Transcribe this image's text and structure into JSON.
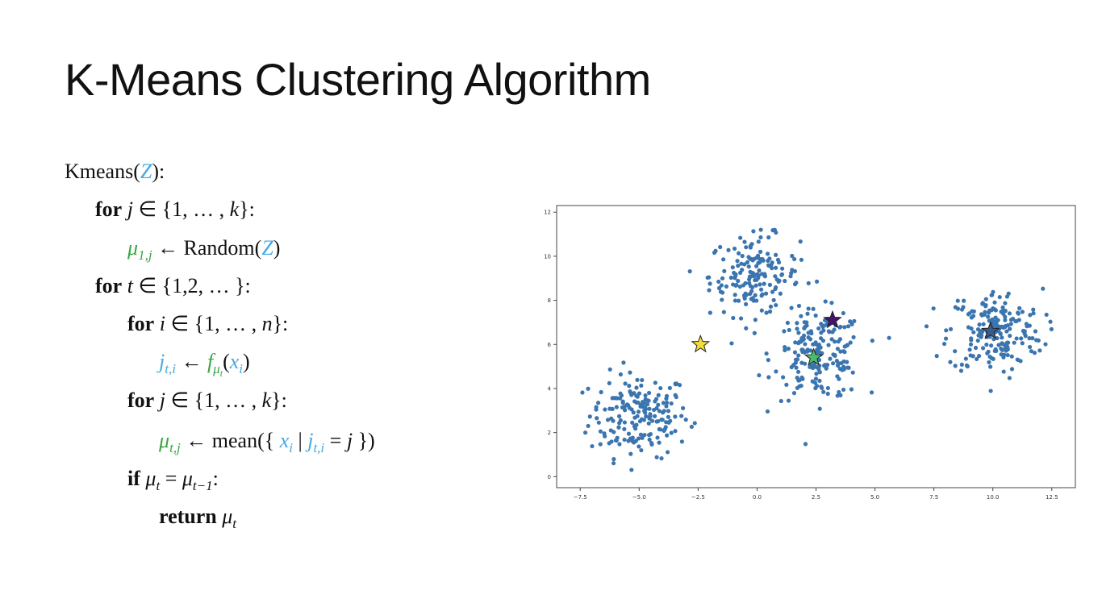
{
  "title": "K-Means Clustering Algorithm",
  "algorithm": {
    "l1": {
      "fn": "Kmeans(",
      "arg": "Z",
      "end": "):"
    },
    "l2": {
      "kw": "for",
      "var": "j",
      "rest": " ∈ {1, … , ",
      "k": "k",
      "end": "}:"
    },
    "l3": {
      "mu": "μ",
      "sub": "1,j",
      "arrow": " ← Random(",
      "arg": "Z",
      "end": ")"
    },
    "l4": {
      "kw": "for",
      "var": "t",
      "rest": " ∈ {1,2, … }:"
    },
    "l5": {
      "kw": "for",
      "var": "i",
      "rest": " ∈ {1, … , ",
      "n": "n",
      "end": "}:"
    },
    "l6": {
      "j": "j",
      "sub": "t,i",
      "arrow": " ← ",
      "f": "f",
      "fsub": "μ",
      "fsubsub": "t",
      "open": "(",
      "x": "x",
      "xsub": "i",
      "close": ")"
    },
    "l7": {
      "kw": "for",
      "var": "j",
      "rest": " ∈ {1, … , ",
      "k": "k",
      "end": "}:"
    },
    "l8": {
      "mu": "μ",
      "sub": "t,j",
      "arrow": " ← mean({ ",
      "x": "x",
      "xsub": "i",
      "bar": " | ",
      "j": "j",
      "jsub": "t,i",
      "eq": " = ",
      "jj": "j",
      "end": " })"
    },
    "l9": {
      "kw": "if",
      "mu": "μ",
      "sub": "t",
      "eq": " = ",
      "mu2": "μ",
      "sub2": "t−1",
      "end": ":"
    },
    "l10": {
      "kw": "return",
      "mu": "μ",
      "sub": "t"
    }
  },
  "chart_data": {
    "type": "scatter",
    "xlim": [
      -8.5,
      13.5
    ],
    "ylim": [
      -0.5,
      12.3
    ],
    "xticks": [
      -7.5,
      -5.0,
      -2.5,
      0.0,
      2.5,
      5.0,
      7.5,
      10.0,
      12.5
    ],
    "xtick_labels": [
      "−7.5",
      "−5.0",
      "−2.5",
      "0.0",
      "2.5",
      "5.0",
      "7.5",
      "10.0",
      "12.5"
    ],
    "yticks": [
      0,
      2,
      4,
      6,
      8,
      10,
      12
    ],
    "ytick_labels": [
      "0",
      "2",
      "4",
      "6",
      "8",
      "10",
      "12"
    ],
    "point_color": "#3b75af",
    "clusters": [
      {
        "center": [
          -5.0,
          2.8
        ],
        "spread": [
          1.05,
          0.95
        ],
        "n": 190
      },
      {
        "center": [
          -0.1,
          9.1
        ],
        "spread": [
          0.95,
          0.9
        ],
        "n": 170
      },
      {
        "center": [
          2.6,
          5.5
        ],
        "spread": [
          0.95,
          1.0
        ],
        "n": 190
      },
      {
        "center": [
          10.1,
          6.6
        ],
        "spread": [
          1.0,
          0.95
        ],
        "n": 200
      }
    ],
    "centroids": [
      {
        "x": -2.4,
        "y": 6.0,
        "color": "#f2dc3a"
      },
      {
        "x": 3.2,
        "y": 7.1,
        "color": "#47146b"
      },
      {
        "x": 2.4,
        "y": 5.4,
        "color": "#4cbb6f"
      },
      {
        "x": 9.9,
        "y": 6.6,
        "color": "#3b5a85"
      }
    ]
  }
}
